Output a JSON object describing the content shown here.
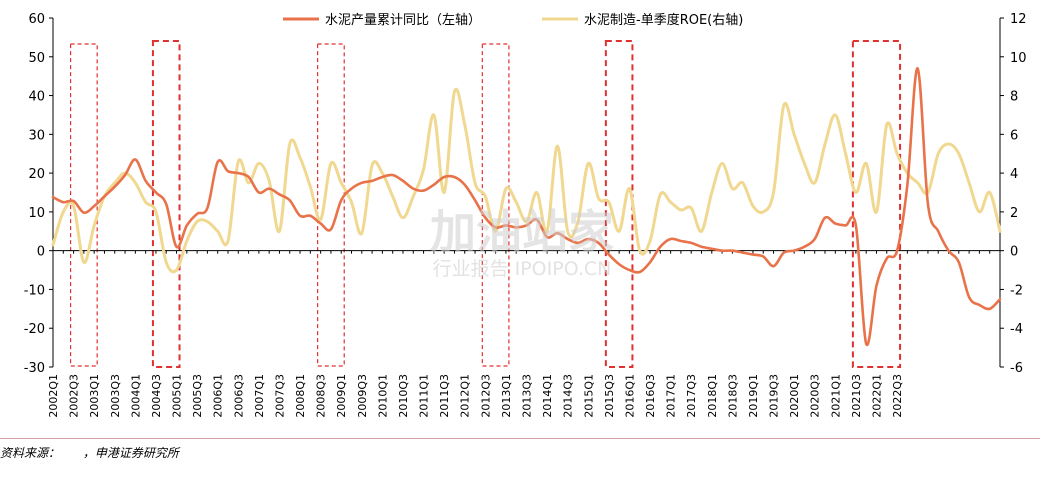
{
  "chart_data": {
    "type": "line",
    "legend_position": "top",
    "series": [
      {
        "name": "水泥产量累计同比（左轴）",
        "axis": "left",
        "color": "#E8734A",
        "values": [
          13.8,
          12.5,
          12.8,
          9.8,
          11.5,
          14,
          16.5,
          19.5,
          23.5,
          18,
          15,
          12,
          1,
          6.5,
          9.5,
          11,
          22.9,
          20.5,
          20,
          19,
          15,
          16,
          14.5,
          13,
          9,
          9,
          7,
          5.5,
          13,
          16,
          17.5,
          18,
          19,
          19.5,
          18,
          16,
          15.5,
          17,
          19,
          19,
          17,
          13,
          8.5,
          6,
          6.5,
          6,
          6.5,
          8,
          3.5,
          4.5,
          3,
          2,
          3,
          2,
          -1,
          -3.5,
          -5,
          -5.5,
          -3,
          1,
          3,
          2.5,
          2,
          1,
          0.5,
          0,
          0,
          -0.5,
          -1,
          -1.5,
          -4,
          -0.5,
          0,
          1,
          3,
          8.5,
          7,
          6.5,
          6.5,
          -24,
          -9,
          -2,
          0,
          17,
          47,
          12,
          5,
          0,
          -3,
          -12,
          -14,
          -15,
          -12.5
        ]
      },
      {
        "name": "水泥制造-单季度ROE(右轴)",
        "axis": "right",
        "color": "#F0D890",
        "values": [
          0.3,
          2,
          2.3,
          -0.6,
          1.3,
          2.8,
          3.5,
          4,
          3.5,
          2.5,
          2,
          -0.6,
          -1,
          0.5,
          1.5,
          1.5,
          1,
          0.5,
          4.6,
          3.5,
          4.5,
          3.6,
          1,
          5.5,
          4.8,
          3.3,
          1.6,
          4.5,
          3.5,
          2.5,
          0.9,
          4.4,
          4,
          2.8,
          1.7,
          2.8,
          4.2,
          7,
          3,
          8.2,
          6.5,
          3.5,
          2.8,
          1,
          3.2,
          2.5,
          1.5,
          3,
          1,
          5.4,
          1,
          1.5,
          4.5,
          2.7,
          2.5,
          1,
          3.2,
          0,
          0.5,
          2.9,
          2.5,
          2.1,
          2.2,
          1,
          3,
          4.5,
          3.2,
          3.5,
          2.3,
          2,
          3,
          7.5,
          6,
          4.5,
          3.5,
          5.5,
          7,
          5,
          3,
          4.5,
          2,
          6.5,
          5,
          4,
          3.5,
          3,
          5,
          5.5,
          5,
          3.5,
          2,
          3,
          1
        ]
      }
    ],
    "left_axis": {
      "ylim": [
        -30,
        60
      ],
      "ticks": [
        "60",
        "50",
        "40",
        "30",
        "20",
        "10",
        "0",
        "-10",
        "-20",
        "-30"
      ]
    },
    "right_axis": {
      "ylim": [
        -6,
        12
      ],
      "ticks": [
        "12",
        "10",
        "8",
        "6",
        "4",
        "2",
        "0",
        "-2",
        "-4",
        "-6"
      ]
    },
    "x_tick_labels": [
      "2002Q1",
      "2002Q3",
      "2003Q1",
      "2003Q3",
      "2004Q1",
      "2004Q3",
      "2005Q1",
      "2005Q3",
      "2006Q1",
      "2006Q3",
      "2007Q1",
      "2007Q3",
      "2008Q1",
      "2008Q3",
      "2009Q1",
      "2009Q3",
      "2010Q1",
      "2010Q3",
      "2011Q1",
      "2011Q3",
      "2012Q1",
      "2012Q3",
      "2013Q1",
      "2013Q3",
      "2014Q1",
      "2014Q3",
      "2015Q1",
      "2015Q3",
      "2016Q1",
      "2016Q3",
      "2017Q1",
      "2017Q3",
      "2018Q1",
      "2018Q3",
      "2019Q1",
      "2019Q3",
      "2020Q1",
      "2020Q3",
      "2021Q1",
      "2021Q3",
      "2022Q1",
      "2022Q3"
    ],
    "highlight_periods": [
      {
        "from": "2002Q3",
        "to": "2003Q1",
        "style": "thin"
      },
      {
        "from": "2004Q3",
        "to": "2005Q1",
        "style": "bold"
      },
      {
        "from": "2008Q3",
        "to": "2009Q1",
        "style": "thin"
      },
      {
        "from": "2012Q3",
        "to": "2013Q1",
        "style": "thin"
      },
      {
        "from": "2015Q3",
        "to": "2016Q1",
        "style": "bold"
      },
      {
        "from": "2021Q3",
        "to": "2022Q3",
        "style": "bold"
      }
    ],
    "grid": false
  },
  "watermark": {
    "main": "加油站家",
    "sub": "行业报告 IPOIPO.CN"
  },
  "source_text": "资料来源：      ，申港证券研究所",
  "colors": {
    "highlight": "#E03030",
    "axis": "#000000"
  }
}
